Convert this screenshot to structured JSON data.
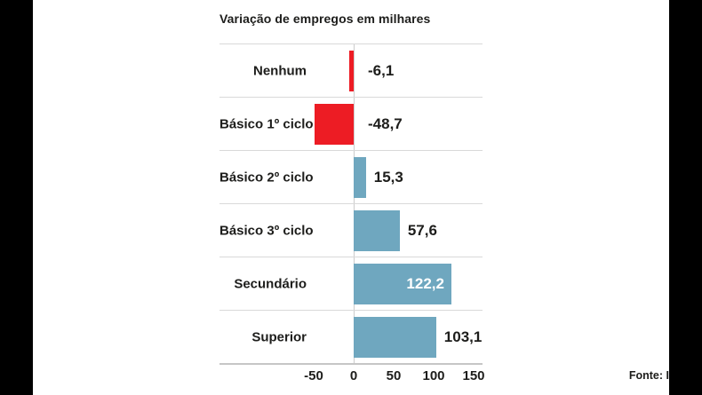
{
  "title": "Variação de empregos em milhares",
  "source": "Fonte: I",
  "chart_data": {
    "type": "bar",
    "orientation": "horizontal",
    "title": "Variação de empregos em milhares",
    "categories": [
      "Nenhum",
      "Básico 1º ciclo",
      "Básico 2º ciclo",
      "Básico 3º ciclo",
      "Secundário",
      "Superior"
    ],
    "values": [
      -6.1,
      -48.7,
      15.3,
      57.6,
      122.2,
      103.1
    ],
    "value_labels": [
      "-6,1",
      "-48,7",
      "15,3",
      "57,6",
      "122,2",
      "103,1"
    ],
    "value_label_inside": [
      false,
      false,
      false,
      false,
      true,
      false
    ],
    "x_ticks": [
      -50,
      0,
      50,
      100,
      150
    ],
    "x_tick_labels": [
      "-50",
      "0",
      "50",
      "100",
      "150"
    ],
    "xlim": [
      -60,
      160
    ],
    "legend": "none",
    "grid": "horizontal-row-separators",
    "colors": {
      "negative_bar": "#ed1c24",
      "positive_bar": "#6fa7bf",
      "text": "#1d1d1b",
      "separator_line": "#d9d9d9",
      "axis_line": "#c6c6c6",
      "background": "#ffffff",
      "letterbox": "#000000"
    }
  }
}
